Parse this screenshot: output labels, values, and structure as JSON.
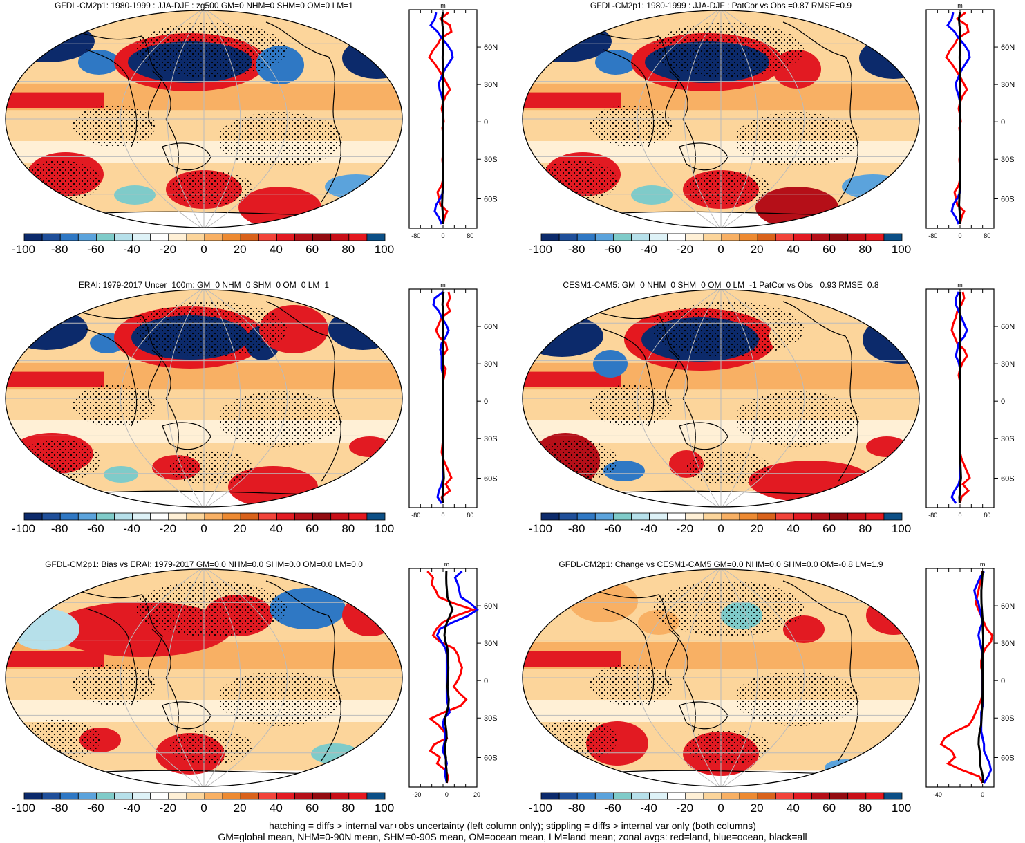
{
  "panels": [
    {
      "title": "GFDL-CM2p1: 1980-1999 : JJA-DJF : zg500 GM=0 NHM=0 SHM=0 OM=0 LM=1",
      "zonal_xticks": [
        "-80",
        "0",
        "80"
      ],
      "zonal_range": [
        -100,
        100
      ],
      "zonal_unit": "m"
    },
    {
      "title": "GFDL-CM2p1: 1980-1999 : JJA-DJF : PatCor vs Obs =0.87 RMSE=0.9",
      "zonal_xticks": [
        "-80",
        "0",
        "80"
      ],
      "zonal_range": [
        -100,
        100
      ],
      "zonal_unit": "m"
    },
    {
      "title": "ERAI: 1979-2017 Uncer=100m: GM=0 NHM=0 SHM=0 OM=0 LM=1",
      "zonal_xticks": [
        "-80",
        "0",
        "80"
      ],
      "zonal_range": [
        -100,
        100
      ],
      "zonal_unit": "m"
    },
    {
      "title": "CESM1-CAM5: GM=0 NHM=0 SHM=0 OM=0 LM=-1 PatCor vs Obs =0.93 RMSE=0.8",
      "zonal_xticks": [
        "-80",
        "0",
        "80"
      ],
      "zonal_range": [
        -100,
        100
      ],
      "zonal_unit": "m"
    },
    {
      "title": "GFDL-CM2p1: Bias vs ERAI: 1979-2017 GM=0.0 NHM=0.0 SHM=0.0 OM=0.0 LM=0.0",
      "zonal_xticks": [
        "-20",
        "0",
        "20"
      ],
      "zonal_range": [
        -25,
        20
      ],
      "zonal_unit": "m"
    },
    {
      "title": "GFDL-CM2p1: Change vs CESM1-CAM5 GM=0.0 NHM=0.0 SHM=0.0 OM=-0.8 LM=1.9",
      "zonal_xticks": [
        "-40",
        "0"
      ],
      "zonal_range": [
        -50,
        10
      ],
      "zonal_unit": "m"
    }
  ],
  "lat_labels": [
    "60N",
    "30N",
    "0",
    "30S",
    "60S"
  ],
  "colorbar": {
    "labels": [
      "-100",
      "-80",
      "-60",
      "-40",
      "-20",
      "0",
      "20",
      "40",
      "60",
      "80",
      "100"
    ],
    "colors": [
      "#0c2a6b",
      "#1f4f9a",
      "#2f78c4",
      "#5ba3dc",
      "#7fcbc9",
      "#b6e0ea",
      "#def2f7",
      "#ffffff",
      "#fff0d6",
      "#fcd59b",
      "#f8b064",
      "#ed8a32",
      "#d9621b",
      "#f2443a",
      "#e21a22",
      "#b50f18",
      "#930b10",
      "#c80f18",
      "#e4181f",
      "#0c4f86"
    ]
  },
  "legend_colors": {
    "land": "#ff0000",
    "ocean": "#0000ff",
    "all": "#000000"
  },
  "footer": [
    "hatching = diffs > internal var+obs uncertainty (left column only); stippling = diffs > internal var only (both columns)",
    "GM=global mean, NHM=0-90N mean, SHM=0-90S mean, OM=ocean mean, LM=land mean; zonal avgs: red=land, blue=ocean, black=all"
  ]
}
